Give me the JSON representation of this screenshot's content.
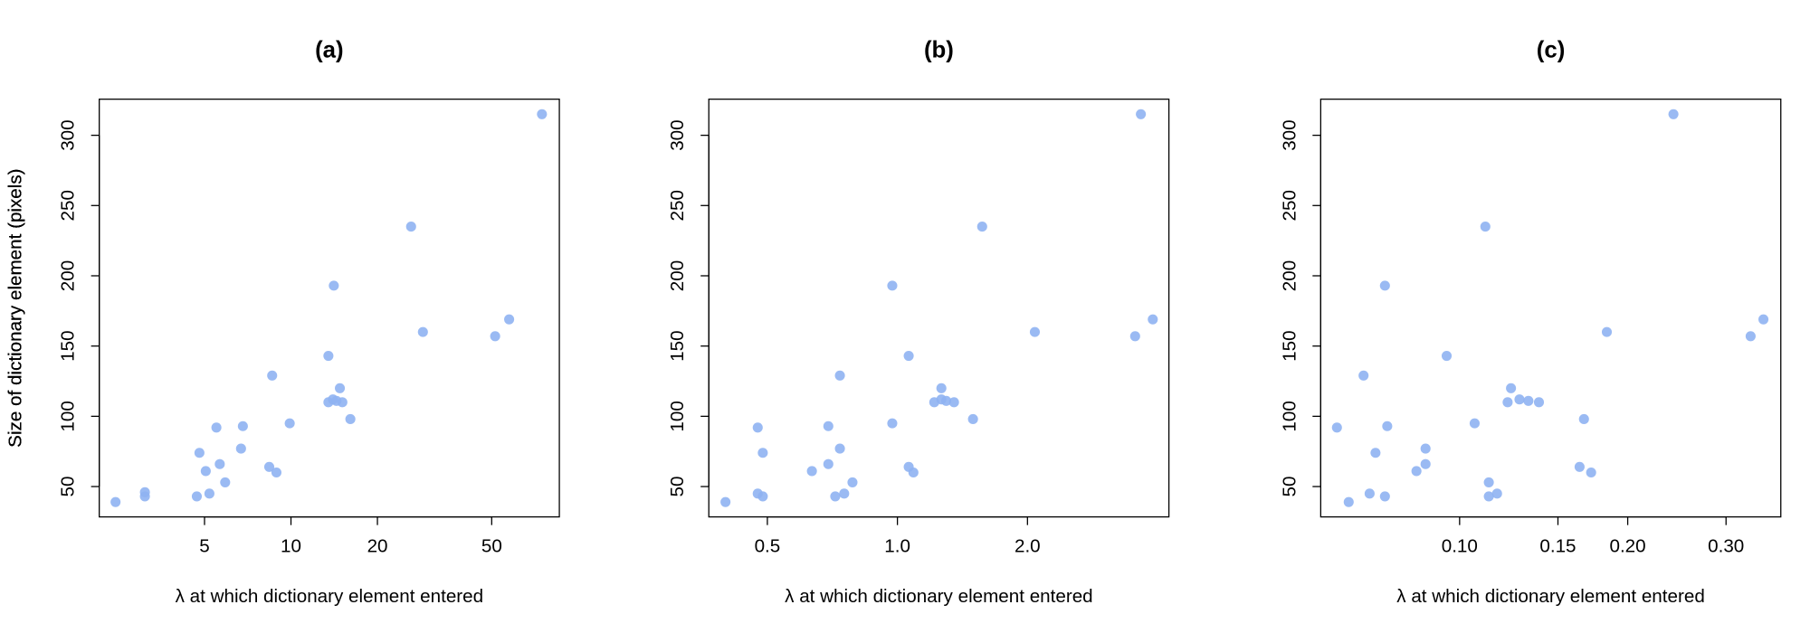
{
  "chart_data": [
    {
      "type": "scatter",
      "title": "(a)",
      "x_label": "λ at which dictionary element entered",
      "y_label": "Size of dictionary element (pixels)",
      "x_scale": "log",
      "color": "#8fb2f2",
      "x": [
        2.45,
        3.1,
        3.1,
        4.7,
        5.2,
        4.8,
        5.05,
        5.65,
        5.5,
        5.9,
        6.8,
        6.7,
        8.4,
        8.9,
        8.6,
        9.9,
        13.5,
        14.1,
        13.5,
        14,
        14.4,
        15.1,
        14.8,
        16.1,
        26.2,
        28.8,
        51.4,
        57.5,
        74.8
      ],
      "values": [
        39,
        43,
        46,
        43,
        45,
        74,
        61,
        66,
        92,
        53,
        93,
        77,
        64,
        60,
        129,
        95,
        143,
        193,
        110,
        112,
        111,
        110,
        120,
        98,
        235,
        160,
        157,
        169,
        315
      ],
      "xlim": [
        2.15,
        86
      ],
      "ylim": [
        28.4,
        325.7
      ],
      "xticks": [
        5,
        10,
        20,
        50
      ],
      "yticks": [
        50,
        100,
        150,
        200,
        250,
        300
      ]
    },
    {
      "type": "scatter",
      "title": "(b)",
      "x_label": "λ at which dictionary element entered",
      "y_label": "Size of dictionary element (pixels)",
      "x_scale": "log",
      "color": "#8fb2f2",
      "x": [
        0.4,
        0.475,
        0.488,
        0.475,
        0.488,
        0.634,
        0.692,
        0.692,
        0.718,
        0.736,
        0.736,
        0.753,
        0.787,
        0.973,
        0.973,
        1.062,
        1.062,
        1.089,
        1.217,
        1.264,
        1.264,
        1.297,
        1.352,
        1.496,
        1.571,
        2.08,
        3.55,
        3.66,
        3.9
      ],
      "values": [
        39,
        45,
        43,
        92,
        74,
        61,
        66,
        93,
        43,
        77,
        129,
        45,
        53,
        193,
        95,
        143,
        64,
        60,
        110,
        120,
        112,
        111,
        110,
        98,
        235,
        160,
        157,
        315,
        169
      ],
      "xlim": [
        0.366,
        4.25
      ],
      "ylim": [
        28.4,
        325.7
      ],
      "xticks": [
        0.5,
        {
          "value": 1,
          "label": "1.0"
        },
        {
          "value": 2,
          "label": "2.0"
        }
      ],
      "yticks": [
        50,
        100,
        150,
        200,
        250,
        300
      ]
    },
    {
      "type": "scatter",
      "title": "(c)",
      "x_label": "λ at which dictionary element entered",
      "y_label": "Size of dictionary element (pixels)",
      "x_scale": "log",
      "color": "#8fb2f2",
      "x": [
        0.0603,
        0.0633,
        0.0673,
        0.069,
        0.0707,
        0.0735,
        0.0735,
        0.0742,
        0.0837,
        0.0869,
        0.0869,
        0.0948,
        0.1064,
        0.1112,
        0.1128,
        0.1128,
        0.1167,
        0.1219,
        0.1236,
        0.128,
        0.1328,
        0.1387,
        0.167,
        0.1835,
        0.164,
        0.172,
        0.2415,
        0.332,
        0.35
      ],
      "values": [
        92,
        39,
        129,
        45,
        74,
        193,
        43,
        93,
        61,
        77,
        66,
        143,
        95,
        235,
        53,
        43,
        45,
        110,
        120,
        112,
        111,
        110,
        98,
        160,
        64,
        60,
        315,
        157,
        169
      ],
      "xlim": [
        0.0564,
        0.376
      ],
      "ylim": [
        28.4,
        325.7
      ],
      "xticks": [
        {
          "value": 0.1,
          "label": "0.10"
        },
        0.15,
        {
          "value": 0.2,
          "label": "0.20"
        },
        {
          "value": 0.3,
          "label": "0.30"
        }
      ],
      "yticks": [
        50,
        100,
        150,
        200,
        250,
        300
      ]
    }
  ]
}
